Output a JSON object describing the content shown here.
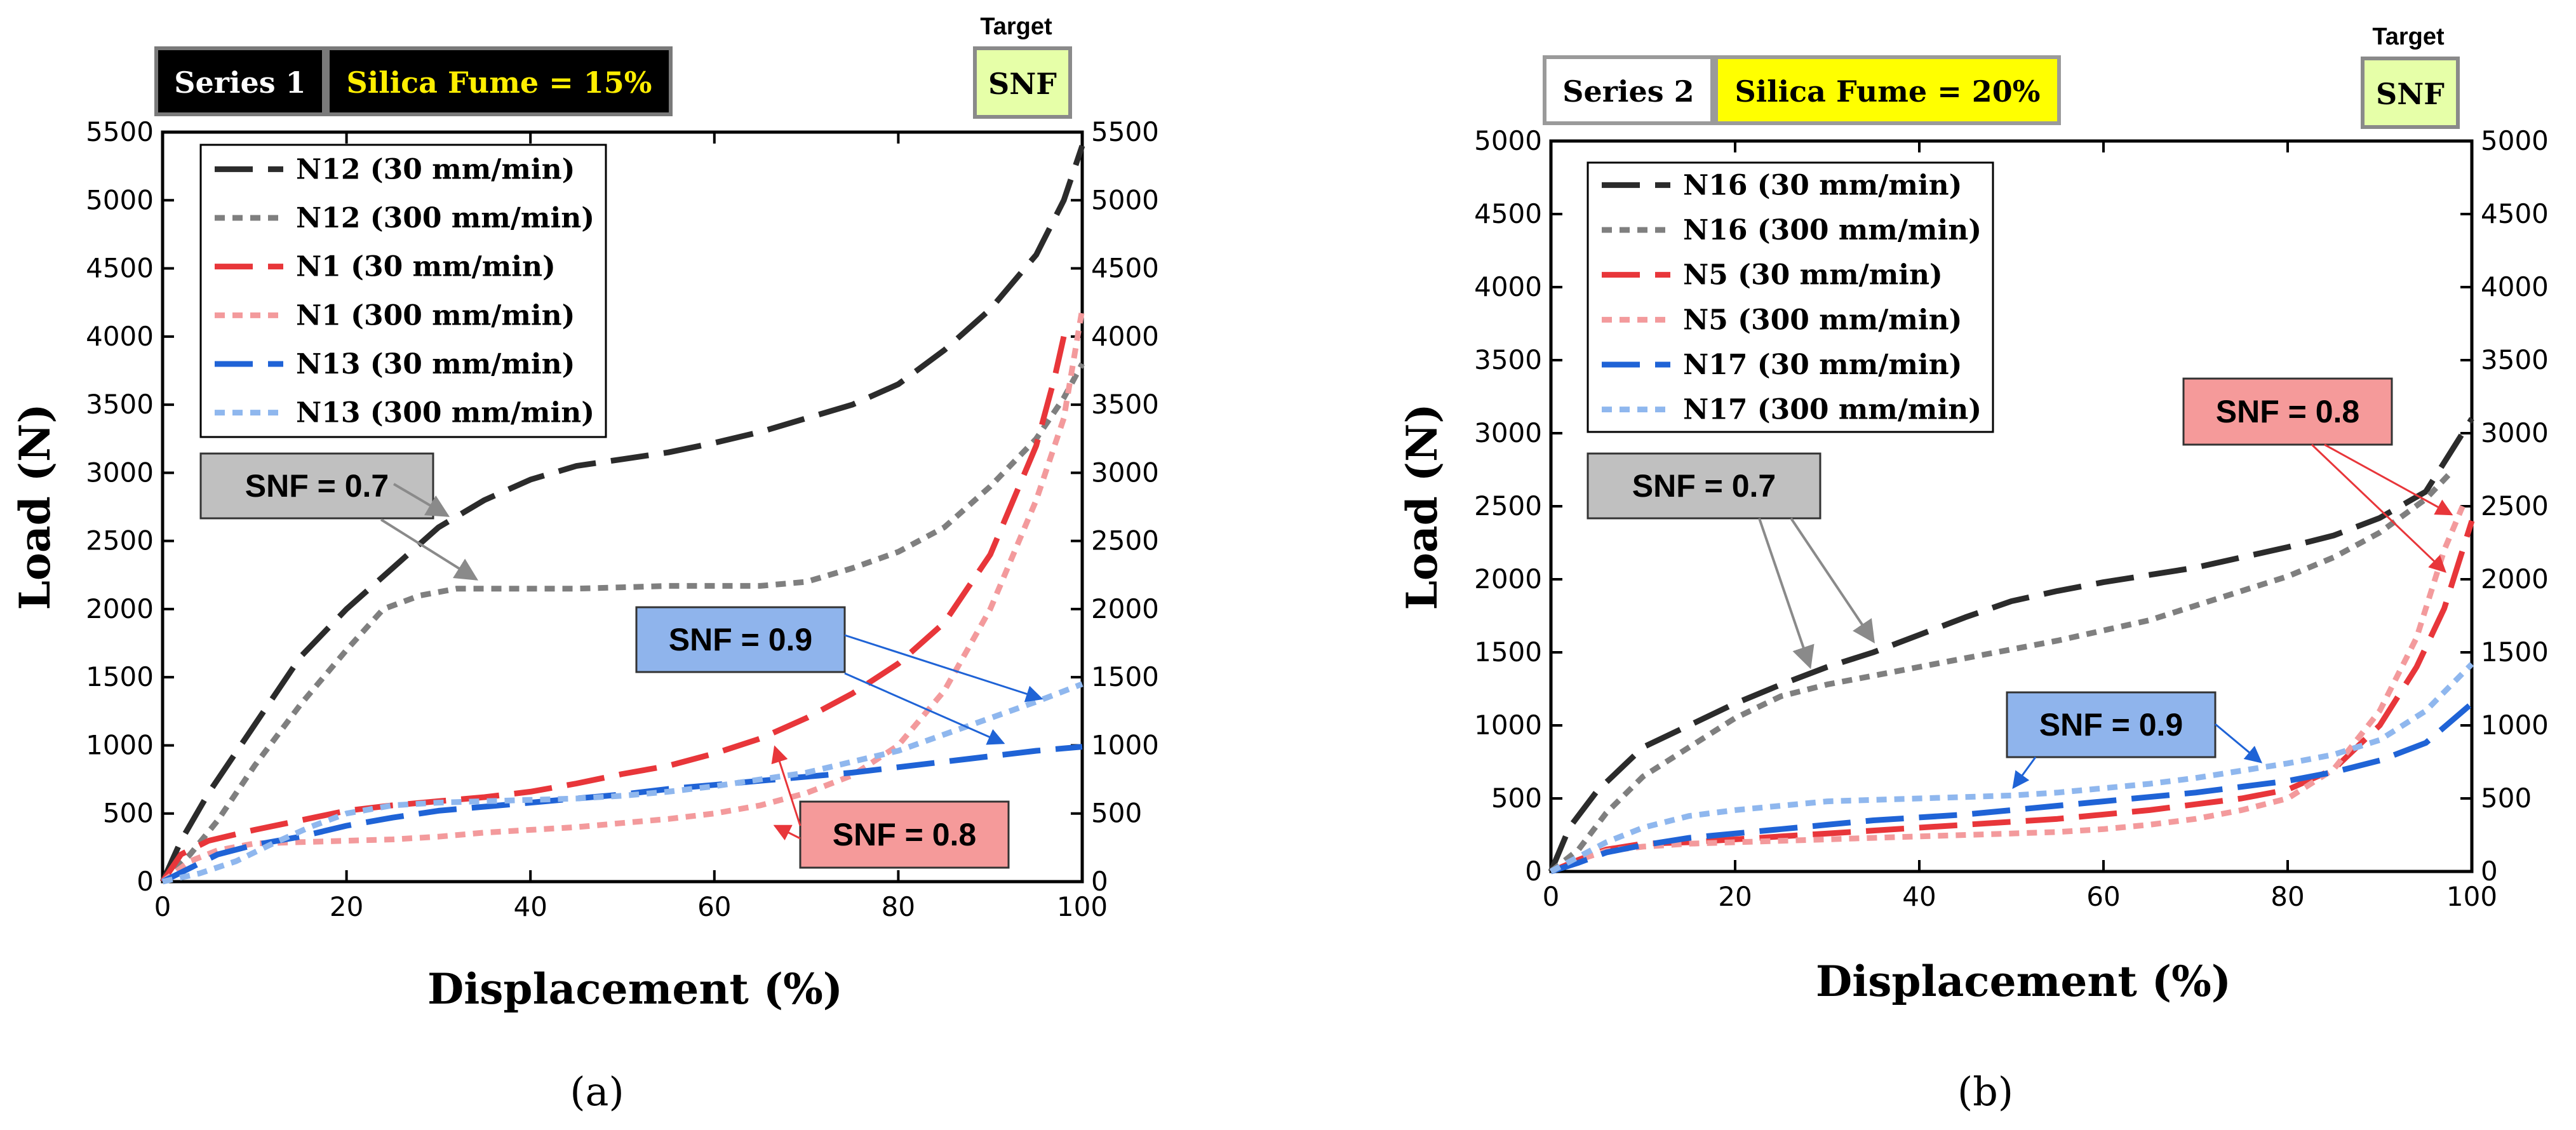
{
  "chart_data": [
    {
      "type": "line",
      "panel_label": "(a)",
      "series_badge": "Series 1",
      "fume_badge": "Silica Fume = 15%",
      "target_label": "Target",
      "target_value": "SNF",
      "xlabel": "Displacement (%)",
      "ylabel": "Load (N)",
      "xlim": [
        0,
        100
      ],
      "ylim": [
        0,
        5500
      ],
      "x_ticks": [
        "0",
        "20",
        "40",
        "60",
        "80",
        "100"
      ],
      "y_ticks": [
        "0",
        "500",
        "1000",
        "1500",
        "2000",
        "2500",
        "3000",
        "3500",
        "4000",
        "4500",
        "5000",
        "5500"
      ],
      "colors": {
        "dark": "#2b2b2b",
        "grey": "#7f7f7f",
        "red": "#e8363a",
        "pink": "#f39a9c",
        "blue": "#1f63d6",
        "lightblue": "#8fb7ee",
        "callout_grey": "#c0c0c0",
        "callout_red": "#f59a9a",
        "callout_blue": "#8fb4ec",
        "fume_text": "#ffee00",
        "target_fill": "#e6ffa8"
      },
      "series": [
        {
          "name": "N12 (30 mm/min)",
          "color": "#2b2b2b",
          "dash": "long",
          "x": [
            0,
            2,
            5,
            10,
            15,
            20,
            25,
            30,
            35,
            40,
            45,
            50,
            55,
            60,
            65,
            70,
            75,
            80,
            85,
            90,
            95,
            98,
            100
          ],
          "y": [
            0,
            300,
            650,
            1150,
            1650,
            2000,
            2300,
            2600,
            2800,
            2950,
            3050,
            3100,
            3150,
            3220,
            3300,
            3400,
            3500,
            3650,
            3900,
            4200,
            4600,
            5000,
            5400
          ]
        },
        {
          "name": "N12 (300 mm/min)",
          "color": "#7f7f7f",
          "dash": "short",
          "x": [
            0,
            3,
            6,
            10,
            15,
            20,
            24,
            28,
            32,
            36,
            40,
            45,
            50,
            55,
            60,
            65,
            70,
            75,
            80,
            85,
            90,
            95,
            98,
            100
          ],
          "y": [
            0,
            200,
            450,
            850,
            1300,
            1700,
            2000,
            2100,
            2150,
            2150,
            2150,
            2150,
            2160,
            2170,
            2170,
            2170,
            2200,
            2300,
            2420,
            2600,
            2900,
            3250,
            3550,
            3800
          ]
        },
        {
          "name": "N1 (30 mm/min)",
          "color": "#e8363a",
          "dash": "long",
          "x": [
            0,
            2,
            5,
            10,
            15,
            20,
            25,
            30,
            35,
            40,
            45,
            50,
            55,
            60,
            65,
            70,
            75,
            80,
            85,
            90,
            95,
            97,
            98
          ],
          "y": [
            0,
            200,
            300,
            380,
            450,
            520,
            560,
            590,
            620,
            660,
            720,
            790,
            850,
            940,
            1050,
            1200,
            1380,
            1600,
            1900,
            2400,
            3200,
            3700,
            4000
          ]
        },
        {
          "name": "N1 (300 mm/min)",
          "color": "#f39a9c",
          "dash": "short",
          "x": [
            0,
            3,
            6,
            10,
            15,
            20,
            25,
            30,
            35,
            40,
            45,
            50,
            55,
            60,
            65,
            70,
            75,
            80,
            85,
            90,
            95,
            98,
            100
          ],
          "y": [
            0,
            150,
            230,
            280,
            290,
            300,
            310,
            330,
            360,
            380,
            400,
            430,
            460,
            500,
            560,
            650,
            780,
            1000,
            1400,
            2000,
            2800,
            3400,
            4200
          ]
        },
        {
          "name": "N13 (30 mm/min)",
          "color": "#1f63d6",
          "dash": "long",
          "x": [
            0,
            3,
            6,
            10,
            15,
            20,
            25,
            30,
            35,
            40,
            45,
            50,
            55,
            60,
            65,
            70,
            75,
            80,
            85,
            90,
            95,
            100
          ],
          "y": [
            0,
            100,
            200,
            270,
            330,
            410,
            470,
            520,
            550,
            580,
            610,
            640,
            680,
            710,
            740,
            770,
            800,
            840,
            880,
            920,
            960,
            990
          ]
        },
        {
          "name": "N13 (300 mm/min)",
          "color": "#8fb7ee",
          "dash": "short",
          "x": [
            0,
            4,
            8,
            12,
            16,
            20,
            25,
            30,
            35,
            40,
            45,
            50,
            55,
            60,
            65,
            70,
            75,
            80,
            85,
            90,
            95,
            100
          ],
          "y": [
            0,
            60,
            150,
            280,
            400,
            500,
            560,
            580,
            590,
            600,
            610,
            630,
            660,
            700,
            750,
            800,
            880,
            960,
            1080,
            1200,
            1320,
            1450
          ]
        }
      ],
      "annotations": [
        {
          "text": "SNF = 0.7",
          "style": "grey"
        },
        {
          "text": "SNF = 0.9",
          "style": "blue"
        },
        {
          "text": "SNF = 0.8",
          "style": "red"
        }
      ]
    },
    {
      "type": "line",
      "panel_label": "(b)",
      "series_badge": "Series 2",
      "fume_badge": "Silica Fume = 20%",
      "target_label": "Target",
      "target_value": "SNF",
      "xlabel": "Displacement (%)",
      "ylabel": "Load (N)",
      "xlim": [
        0,
        100
      ],
      "ylim": [
        0,
        5000
      ],
      "x_ticks": [
        "0",
        "20",
        "40",
        "60",
        "80",
        "100"
      ],
      "y_ticks": [
        "0",
        "500",
        "1000",
        "1500",
        "2000",
        "2500",
        "3000",
        "3500",
        "4000",
        "4500",
        "5000"
      ],
      "colors": {
        "dark": "#2b2b2b",
        "grey": "#7f7f7f",
        "red": "#e8363a",
        "pink": "#f39a9c",
        "blue": "#1f63d6",
        "lightblue": "#8fb7ee",
        "callout_grey": "#c0c0c0",
        "callout_red": "#f59a9a",
        "callout_blue": "#8fb4ec",
        "fume_bg": "#ffff00",
        "target_fill": "#e6ffa8"
      },
      "series": [
        {
          "name": "N16 (30 mm/min)",
          "color": "#2b2b2b",
          "dash": "long",
          "x": [
            0,
            2,
            5,
            10,
            15,
            20,
            25,
            30,
            35,
            40,
            45,
            50,
            55,
            60,
            65,
            70,
            75,
            80,
            85,
            90,
            95,
            100
          ],
          "y": [
            0,
            300,
            550,
            850,
            1000,
            1150,
            1280,
            1400,
            1500,
            1620,
            1740,
            1850,
            1920,
            1980,
            2030,
            2080,
            2150,
            2220,
            2300,
            2420,
            2600,
            3100
          ]
        },
        {
          "name": "N16 (300 mm/min)",
          "color": "#7f7f7f",
          "dash": "short",
          "x": [
            0,
            3,
            6,
            10,
            15,
            20,
            25,
            30,
            35,
            40,
            45,
            50,
            55,
            60,
            65,
            70,
            75,
            80,
            85,
            90,
            95,
            98
          ],
          "y": [
            0,
            150,
            400,
            650,
            850,
            1050,
            1200,
            1280,
            1340,
            1400,
            1460,
            1520,
            1580,
            1650,
            1720,
            1820,
            1920,
            2020,
            2150,
            2320,
            2550,
            2750
          ]
        },
        {
          "name": "N5 (30 mm/min)",
          "color": "#e8363a",
          "dash": "long",
          "x": [
            0,
            3,
            6,
            10,
            15,
            20,
            25,
            30,
            35,
            40,
            45,
            50,
            55,
            60,
            65,
            70,
            75,
            80,
            85,
            90,
            94,
            97,
            99,
            100
          ],
          "y": [
            0,
            80,
            150,
            190,
            200,
            220,
            240,
            260,
            280,
            300,
            320,
            340,
            360,
            390,
            420,
            460,
            500,
            560,
            700,
            1000,
            1400,
            1800,
            2200,
            2400
          ]
        },
        {
          "name": "N5 (300 mm/min)",
          "color": "#f39a9c",
          "dash": "short",
          "x": [
            0,
            3,
            6,
            10,
            15,
            20,
            25,
            30,
            35,
            40,
            45,
            50,
            55,
            60,
            65,
            70,
            75,
            80,
            85,
            90,
            94,
            97,
            99
          ],
          "y": [
            0,
            80,
            140,
            170,
            190,
            200,
            210,
            220,
            230,
            240,
            250,
            260,
            270,
            290,
            320,
            360,
            420,
            500,
            700,
            1100,
            1600,
            2200,
            2500
          ]
        },
        {
          "name": "N17 (30 mm/min)",
          "color": "#1f63d6",
          "dash": "long",
          "x": [
            0,
            3,
            6,
            10,
            15,
            20,
            25,
            30,
            35,
            40,
            45,
            50,
            55,
            60,
            65,
            70,
            75,
            80,
            85,
            90,
            95,
            100
          ],
          "y": [
            0,
            60,
            130,
            180,
            230,
            260,
            290,
            320,
            350,
            370,
            390,
            420,
            450,
            480,
            510,
            540,
            580,
            620,
            680,
            760,
            880,
            1150
          ]
        },
        {
          "name": "N17 (300 mm/min)",
          "color": "#8fb7ee",
          "dash": "short",
          "x": [
            0,
            3,
            6,
            10,
            15,
            20,
            25,
            30,
            35,
            40,
            45,
            50,
            55,
            60,
            65,
            70,
            75,
            80,
            85,
            90,
            95,
            100
          ],
          "y": [
            0,
            100,
            200,
            300,
            380,
            420,
            450,
            480,
            490,
            500,
            510,
            520,
            540,
            570,
            600,
            640,
            690,
            740,
            800,
            900,
            1100,
            1420
          ]
        }
      ],
      "annotations": [
        {
          "text": "SNF = 0.7",
          "style": "grey"
        },
        {
          "text": "SNF = 0.9",
          "style": "blue"
        },
        {
          "text": "SNF = 0.8",
          "style": "red"
        }
      ]
    }
  ]
}
